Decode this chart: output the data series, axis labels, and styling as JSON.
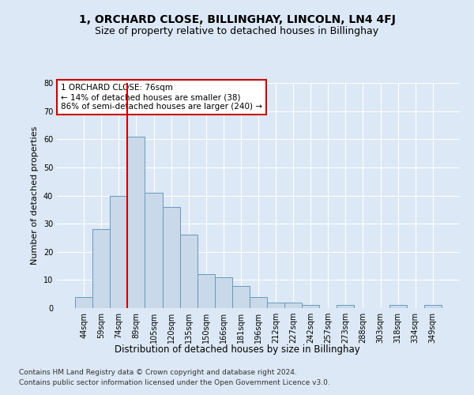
{
  "title": "1, ORCHARD CLOSE, BILLINGHAY, LINCOLN, LN4 4FJ",
  "subtitle": "Size of property relative to detached houses in Billinghay",
  "xlabel": "Distribution of detached houses by size in Billinghay",
  "ylabel": "Number of detached properties",
  "bar_values": [
    4,
    28,
    40,
    61,
    41,
    36,
    26,
    12,
    11,
    8,
    4,
    2,
    2,
    1,
    0,
    1,
    0,
    0,
    1,
    0,
    1
  ],
  "bar_labels": [
    "44sqm",
    "59sqm",
    "74sqm",
    "89sqm",
    "105sqm",
    "120sqm",
    "135sqm",
    "150sqm",
    "166sqm",
    "181sqm",
    "196sqm",
    "212sqm",
    "227sqm",
    "242sqm",
    "257sqm",
    "273sqm",
    "288sqm",
    "303sqm",
    "318sqm",
    "334sqm",
    "349sqm"
  ],
  "bar_color": "#c9d9ea",
  "bar_edge_color": "#6699bb",
  "vline_x": 2.5,
  "vline_color": "#cc0000",
  "annotation_text": "1 ORCHARD CLOSE: 76sqm\n← 14% of detached houses are smaller (38)\n86% of semi-detached houses are larger (240) →",
  "annotation_box_color": "#ffffff",
  "annotation_box_edge": "#cc0000",
  "ylim": [
    0,
    80
  ],
  "yticks": [
    0,
    10,
    20,
    30,
    40,
    50,
    60,
    70,
    80
  ],
  "footer_line1": "Contains HM Land Registry data © Crown copyright and database right 2024.",
  "footer_line2": "Contains public sector information licensed under the Open Government Licence v3.0.",
  "bg_color": "#dce8f5",
  "plot_bg_color": "#dce8f5",
  "grid_color": "#ffffff",
  "title_fontsize": 10,
  "subtitle_fontsize": 9,
  "xlabel_fontsize": 8.5,
  "ylabel_fontsize": 8,
  "tick_fontsize": 7,
  "annotation_fontsize": 7.5,
  "footer_fontsize": 6.5
}
